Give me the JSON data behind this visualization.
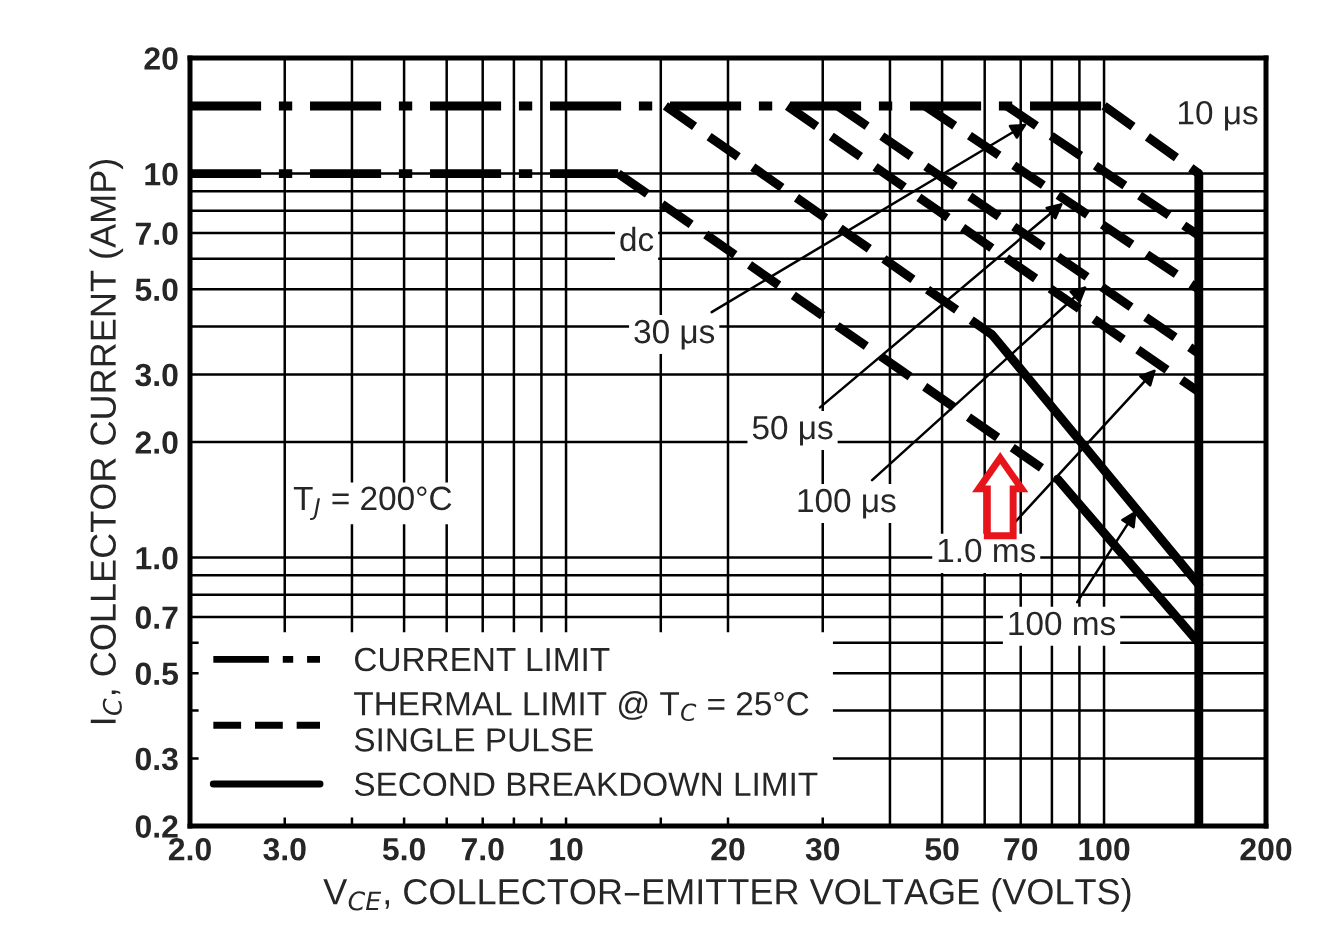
{
  "chart_data": {
    "type": "line",
    "xlabel": "V$_{CE}$, COLLECTOR–EMITTER VOLTAGE (VOLTS)",
    "ylabel": "I$_{C}$, COLLECTOR CURRENT (AMP)",
    "log": "xy",
    "grid": true,
    "legend": "bottom left",
    "marker": "none",
    "xlim": [
      2,
      200
    ],
    "ylim": [
      0.2,
      20
    ],
    "xticks": [
      {
        "value": 2,
        "label": "2.0"
      },
      {
        "value": 3,
        "label": "3.0"
      },
      {
        "value": 4,
        "label": null
      },
      {
        "value": 5,
        "label": "5.0"
      },
      {
        "value": 6,
        "label": null
      },
      {
        "value": 7,
        "label": "7.0"
      },
      {
        "value": 8,
        "label": null
      },
      {
        "value": 9,
        "label": null
      },
      10,
      {
        "value": 15,
        "label": null
      },
      20,
      30,
      {
        "value": 40,
        "label": null
      },
      50,
      {
        "value": 60,
        "label": null
      },
      70,
      {
        "value": 80,
        "label": null
      },
      {
        "value": 90,
        "label": null
      },
      100,
      200
    ],
    "yticks": [
      {
        "value": 0.2,
        "label": "0.2"
      },
      {
        "value": 0.3,
        "label": "0.3"
      },
      {
        "value": 0.4,
        "label": null
      },
      {
        "value": 0.5,
        "label": "0.5"
      },
      {
        "value": 0.6,
        "label": null
      },
      {
        "value": 0.7,
        "label": "0.7"
      },
      {
        "value": 0.8,
        "label": null
      },
      {
        "value": 0.9,
        "label": null
      },
      {
        "value": 1,
        "label": "1.0"
      },
      {
        "value": 2,
        "label": "2.0"
      },
      {
        "value": 3,
        "label": "3.0"
      },
      {
        "value": 4,
        "label": null
      },
      {
        "value": 5,
        "label": "5.0"
      },
      {
        "value": 6,
        "label": null
      },
      {
        "value": 7,
        "label": "7.0"
      },
      {
        "value": 8,
        "label": null
      },
      {
        "value": 9,
        "label": null
      },
      10,
      20
    ],
    "series": [
      {
        "name": "CURRENT LIMIT",
        "color": "#000000",
        "line_style": "dashdot",
        "x": [
          2,
          100
        ],
        "values": [
          15,
          15
        ]
      },
      {
        "color": "#000000",
        "line_style": "dashdot",
        "x": [
          2,
          12.5
        ],
        "values": [
          10,
          10
        ]
      },
      {
        "name": "THERMAL LIMIT @ T$_{C}$ = 25°C\nSINGLE PULSE",
        "color": "#000000",
        "line_style": "dashed",
        "x": [
          12.5,
          82
        ],
        "values": [
          10,
          1.6
        ]
      },
      {
        "color": "#000000",
        "line_style": "dashed",
        "x": [
          15.3,
          62
        ],
        "values": [
          15,
          3.8
        ]
      },
      {
        "color": "#000000",
        "line_style": "dashed",
        "x": [
          25.8,
          150
        ],
        "values": [
          15,
          2.7
        ]
      },
      {
        "color": "#000000",
        "line_style": "dashed",
        "x": [
          32,
          150
        ],
        "values": [
          15,
          3.4
        ]
      },
      {
        "color": "#000000",
        "line_style": "dashed",
        "x": [
          46.5,
          150
        ],
        "values": [
          15,
          5.0
        ]
      },
      {
        "color": "#000000",
        "line_style": "dashed",
        "x": [
          66,
          150
        ],
        "values": [
          15,
          6.9
        ]
      },
      {
        "color": "#000000",
        "line_style": "dashed",
        "x": [
          100,
          150
        ],
        "values": [
          15,
          10
        ]
      },
      {
        "name": "SECOND BREAKDOWN LIMIT",
        "color": "#000000",
        "line_style": "solid",
        "x": [
          82,
          150
        ],
        "values": [
          1.6,
          0.6
        ]
      },
      {
        "color": "#000000",
        "line_style": "solid",
        "x": [
          62,
          150
        ],
        "values": [
          3.8,
          0.85
        ]
      },
      {
        "color": "#000000",
        "line_style": "solid",
        "x": [
          150,
          150
        ],
        "values": [
          10,
          0.2
        ]
      }
    ],
    "annotations": [
      "10 μs",
      "dc",
      {
        "text": "30 μs",
        "x": 72,
        "y": 13.5
      },
      {
        "text": "50 μs",
        "x": 84,
        "y": 8.4
      },
      {
        "text": "100 μs",
        "x": 93,
        "y": 5.1
      },
      {
        "text": "1.0 ms",
        "x": 125,
        "y": 3.1
      },
      {
        "text": "100 ms",
        "x": 115,
        "y": 1.33
      },
      "T$_{J}$ = 200°C"
    ]
  }
}
